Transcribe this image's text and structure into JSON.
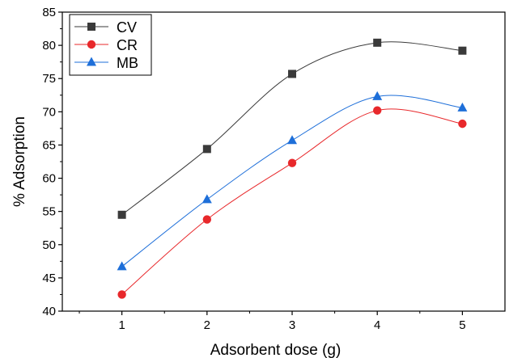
{
  "chart_data": {
    "type": "line",
    "title": "",
    "xlabel": "Adsorbent dose (g)",
    "ylabel": "% Adsorption",
    "x": [
      1,
      2,
      3,
      4,
      5
    ],
    "xlim": [
      0.3,
      5.5
    ],
    "ylim": [
      40,
      85
    ],
    "xticks": [
      1,
      2,
      3,
      4,
      5
    ],
    "yticks": [
      40,
      45,
      50,
      55,
      60,
      65,
      70,
      75,
      80,
      85
    ],
    "grid": false,
    "legend_position": "top-left",
    "series": [
      {
        "name": "CV",
        "values": [
          54.5,
          64.4,
          75.7,
          80.4,
          79.2
        ],
        "color": "#3a3a3a",
        "marker": "square"
      },
      {
        "name": "CR",
        "values": [
          42.5,
          53.8,
          62.3,
          70.2,
          68.2
        ],
        "color": "#e8282b",
        "marker": "circle"
      },
      {
        "name": "MB",
        "values": [
          46.7,
          56.8,
          65.7,
          72.3,
          70.6
        ],
        "color": "#1e6fd9",
        "marker": "triangle"
      }
    ]
  }
}
